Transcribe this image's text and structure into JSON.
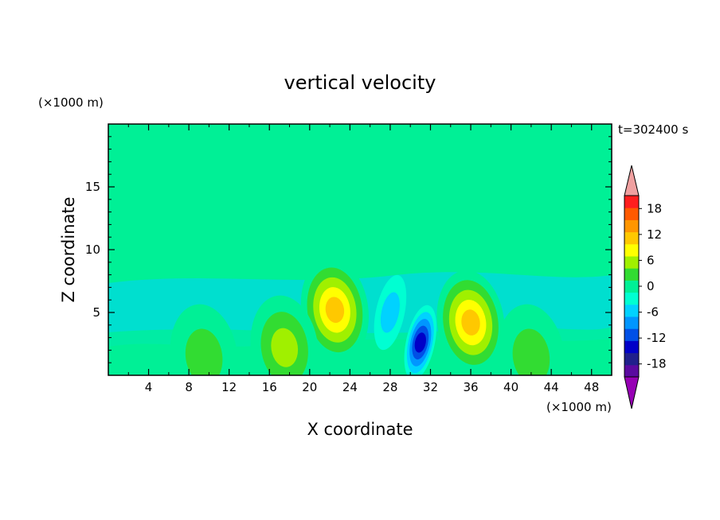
{
  "chart_data": {
    "type": "heatmap",
    "title": "vertical velocity",
    "time_label": "t=302400 s",
    "xlabel": "X coordinate",
    "ylabel": "Z coordinate",
    "x_unit": "(×1000 m)",
    "y_unit": "(×1000 m)",
    "xlim": [
      0,
      50
    ],
    "ylim": [
      0,
      20
    ],
    "x_ticks": [
      4,
      8,
      12,
      16,
      20,
      24,
      28,
      32,
      36,
      40,
      44,
      48
    ],
    "y_ticks": [
      5,
      10,
      15
    ],
    "colorbar": {
      "tick_labels": [
        "18",
        "12",
        "6",
        "0",
        "-6",
        "-12",
        "-18"
      ],
      "levels": [
        -21,
        -18,
        -15,
        -12,
        -9,
        -6,
        -3,
        0,
        3,
        6,
        9,
        12,
        15,
        18,
        21
      ],
      "colors": [
        "#5a0aa0",
        "#20208c",
        "#0000c8",
        "#0050e6",
        "#0096ff",
        "#00d2ff",
        "#00ffd2",
        "#00f096",
        "#32dc32",
        "#a0f000",
        "#ffff00",
        "#ffc800",
        "#ff9600",
        "#ff5a00",
        "#ff1e1e"
      ],
      "over_color": "#f0a0a0",
      "under_color": "#9600b4"
    },
    "features": [
      {
        "x": 22.5,
        "z": 5.2,
        "peak": 13
      },
      {
        "x": 36.0,
        "z": 4.2,
        "peak": 14
      },
      {
        "x": 31.0,
        "z": 2.6,
        "peak": -13
      },
      {
        "x": 17.5,
        "z": 2.2,
        "peak": 7
      },
      {
        "x": 42.0,
        "z": 1.5,
        "peak": 6
      },
      {
        "x": 28.0,
        "z": 5.0,
        "peak": -6
      },
      {
        "x": 9.5,
        "z": 1.5,
        "peak": 4
      }
    ]
  }
}
